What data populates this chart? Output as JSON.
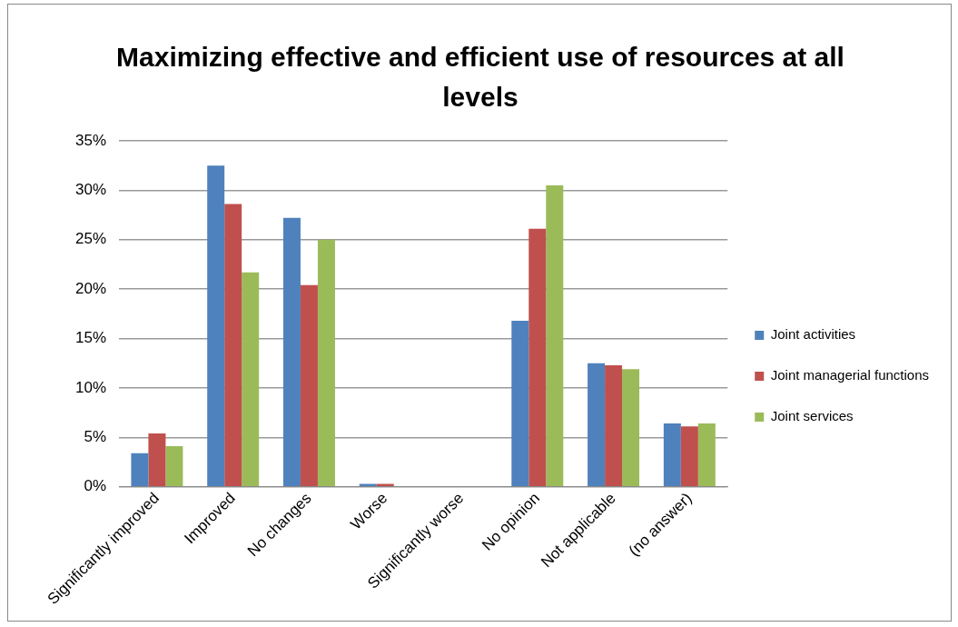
{
  "chart_data": {
    "type": "bar",
    "title": "Maximizing effective and efficient use of resources at all levels",
    "categories": [
      "Significantly improved",
      "Improved",
      "No changes",
      "Worse",
      "Significantly worse",
      "No opinion",
      "Not applicable",
      "(no answer)"
    ],
    "series": [
      {
        "name": "Joint activities",
        "color": "#4f81bd",
        "values": [
          3.4,
          32.5,
          27.2,
          0.3,
          0,
          16.8,
          12.5,
          6.4
        ]
      },
      {
        "name": "Joint managerial functions",
        "color": "#c0504d",
        "values": [
          5.4,
          28.6,
          20.4,
          0.3,
          0,
          26.1,
          12.3,
          6.1
        ]
      },
      {
        "name": "Joint services",
        "color": "#9bbb59",
        "values": [
          4.1,
          21.7,
          25.0,
          0,
          0,
          30.5,
          11.9,
          6.4
        ]
      }
    ],
    "ylim": [
      0,
      35
    ],
    "yticks": [
      {
        "value": 0,
        "label": "0%"
      },
      {
        "value": 5,
        "label": "5%"
      },
      {
        "value": 10,
        "label": "10%"
      },
      {
        "value": 15,
        "label": "15%"
      },
      {
        "value": 20,
        "label": "20%"
      },
      {
        "value": 25,
        "label": "25%"
      },
      {
        "value": 30,
        "label": "30%"
      },
      {
        "value": 35,
        "label": "35%"
      }
    ],
    "grid": "y",
    "legend": "right"
  }
}
